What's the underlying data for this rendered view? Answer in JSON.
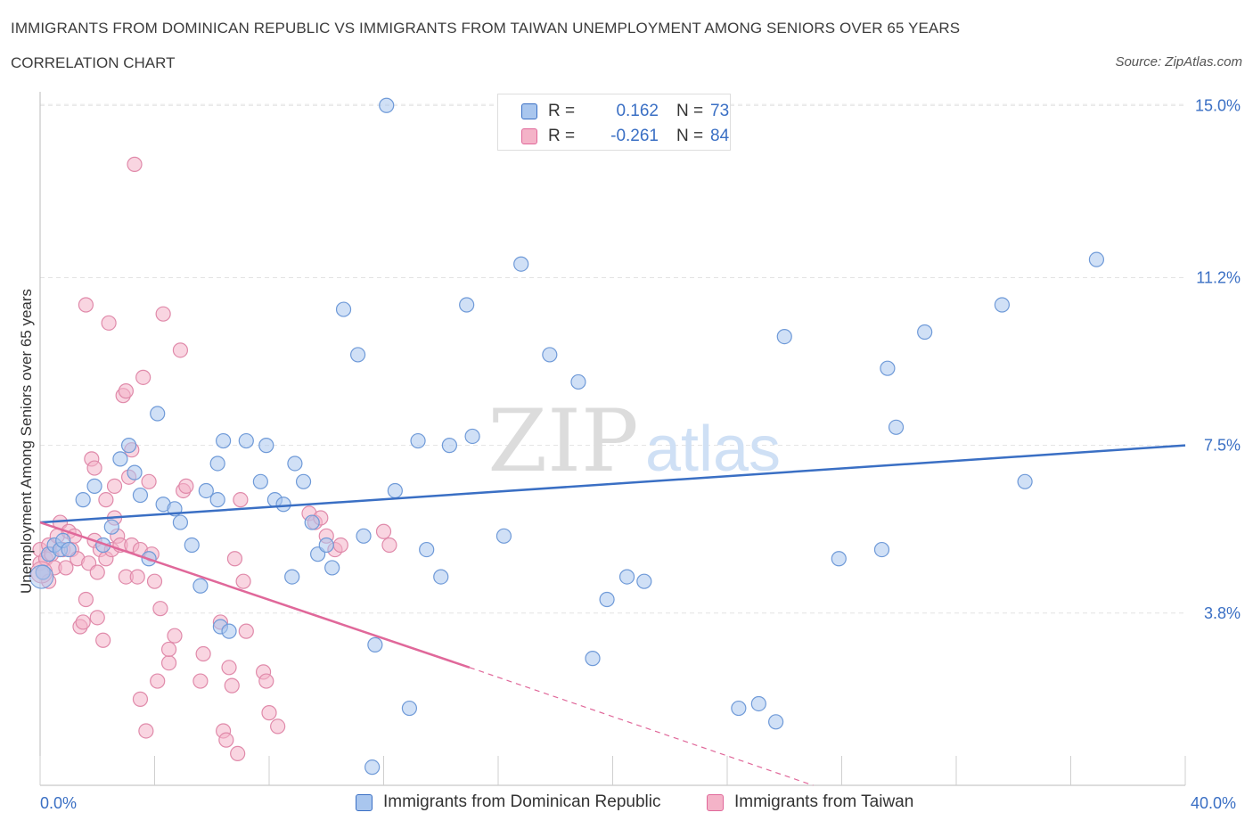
{
  "header": {
    "title": "IMMIGRANTS FROM DOMINICAN REPUBLIC VS IMMIGRANTS FROM TAIWAN UNEMPLOYMENT AMONG SENIORS OVER 65 YEARS",
    "subtitle": "CORRELATION CHART",
    "source": "Source: ZipAtlas.com"
  },
  "watermark": {
    "zip": "ZIP",
    "atlas": "atlas"
  },
  "legend": {
    "r_label": "R =",
    "n_label": "N =",
    "series": [
      {
        "name": "Immigrants from Dominican Republic",
        "r": "0.162",
        "n": "73",
        "color": "#a9c6ee",
        "line": "#3a6fc4"
      },
      {
        "name": "Immigrants from Taiwan",
        "r": "-0.261",
        "n": "84",
        "color": "#f4b3c8",
        "line": "#e0689a"
      }
    ]
  },
  "chart_data": {
    "type": "scatter",
    "title": "IMMIGRANTS FROM DOMINICAN REPUBLIC VS IMMIGRANTS FROM TAIWAN UNEMPLOYMENT AMONG SENIORS OVER 65 YEARS",
    "xlabel": "",
    "ylabel": "Unemployment Among Seniors over 65 years",
    "xlim": [
      0,
      40
    ],
    "ylim": [
      0,
      15.3
    ],
    "x_tick_labels": [
      "0.0%",
      "40.0%"
    ],
    "y_ticks": [
      3.8,
      7.5,
      11.2,
      15.0
    ],
    "y_tick_labels": [
      "3.8%",
      "7.5%",
      "11.2%",
      "15.0%"
    ],
    "grid": true,
    "series": [
      {
        "name": "Immigrants from Dominican Republic",
        "trend": {
          "x": [
            0,
            40
          ],
          "y": [
            5.8,
            7.5
          ]
        },
        "points": [
          [
            0.1,
            4.7
          ],
          [
            0.3,
            5.1
          ],
          [
            0.5,
            5.3
          ],
          [
            0.7,
            5.2
          ],
          [
            0.8,
            5.4
          ],
          [
            1.0,
            5.2
          ],
          [
            1.5,
            6.3
          ],
          [
            1.9,
            6.6
          ],
          [
            2.2,
            5.3
          ],
          [
            2.5,
            5.7
          ],
          [
            2.8,
            7.2
          ],
          [
            3.1,
            7.5
          ],
          [
            3.3,
            6.9
          ],
          [
            3.5,
            6.4
          ],
          [
            3.8,
            5.0
          ],
          [
            4.1,
            8.2
          ],
          [
            4.3,
            6.2
          ],
          [
            4.7,
            6.1
          ],
          [
            4.9,
            5.8
          ],
          [
            5.3,
            5.3
          ],
          [
            5.6,
            4.4
          ],
          [
            5.8,
            6.5
          ],
          [
            6.2,
            7.1
          ],
          [
            6.3,
            3.5
          ],
          [
            6.6,
            3.4
          ],
          [
            6.2,
            6.3
          ],
          [
            6.4,
            7.6
          ],
          [
            7.2,
            7.6
          ],
          [
            7.7,
            6.7
          ],
          [
            7.9,
            7.5
          ],
          [
            8.2,
            6.3
          ],
          [
            8.5,
            6.2
          ],
          [
            8.9,
            7.1
          ],
          [
            8.8,
            4.6
          ],
          [
            9.2,
            6.7
          ],
          [
            9.5,
            5.8
          ],
          [
            9.7,
            5.1
          ],
          [
            10.0,
            5.3
          ],
          [
            10.2,
            4.8
          ],
          [
            10.6,
            10.5
          ],
          [
            11.1,
            9.5
          ],
          [
            11.3,
            5.5
          ],
          [
            11.6,
            0.4
          ],
          [
            11.7,
            3.1
          ],
          [
            12.1,
            15.0
          ],
          [
            12.4,
            6.5
          ],
          [
            12.9,
            1.7
          ],
          [
            13.2,
            7.6
          ],
          [
            13.5,
            5.2
          ],
          [
            14.0,
            4.6
          ],
          [
            14.3,
            7.5
          ],
          [
            14.9,
            10.6
          ],
          [
            15.1,
            7.7
          ],
          [
            16.2,
            5.5
          ],
          [
            16.8,
            11.5
          ],
          [
            17.8,
            9.5
          ],
          [
            18.8,
            8.9
          ],
          [
            19.3,
            2.8
          ],
          [
            19.8,
            4.1
          ],
          [
            20.5,
            4.6
          ],
          [
            21.1,
            4.5
          ],
          [
            24.4,
            1.7
          ],
          [
            25.1,
            1.8
          ],
          [
            25.7,
            1.4
          ],
          [
            26.0,
            9.9
          ],
          [
            27.9,
            5.0
          ],
          [
            29.4,
            5.2
          ],
          [
            29.6,
            9.2
          ],
          [
            29.9,
            7.9
          ],
          [
            30.9,
            10.0
          ],
          [
            33.6,
            10.6
          ],
          [
            34.4,
            6.7
          ],
          [
            36.9,
            11.6
          ]
        ]
      },
      {
        "name": "Immigrants from Taiwan",
        "trend": {
          "x": [
            0,
            15
          ],
          "y": [
            5.8,
            2.6
          ]
        },
        "trend_extension": {
          "x": [
            15,
            27
          ],
          "y": [
            2.6,
            0.0
          ]
        },
        "points": [
          [
            0.0,
            5.2
          ],
          [
            0.0,
            4.9
          ],
          [
            0.1,
            4.7
          ],
          [
            0.2,
            5.0
          ],
          [
            0.3,
            5.3
          ],
          [
            0.4,
            5.1
          ],
          [
            0.5,
            4.8
          ],
          [
            0.6,
            5.5
          ],
          [
            0.7,
            5.8
          ],
          [
            0.8,
            5.2
          ],
          [
            0.9,
            4.8
          ],
          [
            1.0,
            5.6
          ],
          [
            1.1,
            5.2
          ],
          [
            1.2,
            5.5
          ],
          [
            1.3,
            5.0
          ],
          [
            1.4,
            3.5
          ],
          [
            1.5,
            3.6
          ],
          [
            1.6,
            10.6
          ],
          [
            1.6,
            4.1
          ],
          [
            1.7,
            4.9
          ],
          [
            1.8,
            7.2
          ],
          [
            1.9,
            7.0
          ],
          [
            1.9,
            5.4
          ],
          [
            2.0,
            4.7
          ],
          [
            2.0,
            3.7
          ],
          [
            2.1,
            5.2
          ],
          [
            2.2,
            3.2
          ],
          [
            2.3,
            6.3
          ],
          [
            2.3,
            5.0
          ],
          [
            2.4,
            10.2
          ],
          [
            2.5,
            5.2
          ],
          [
            2.6,
            6.6
          ],
          [
            2.6,
            5.9
          ],
          [
            2.7,
            5.5
          ],
          [
            2.8,
            5.3
          ],
          [
            2.9,
            8.6
          ],
          [
            3.0,
            4.6
          ],
          [
            3.0,
            8.7
          ],
          [
            3.1,
            6.8
          ],
          [
            3.2,
            7.4
          ],
          [
            3.2,
            5.3
          ],
          [
            3.3,
            13.7
          ],
          [
            3.4,
            4.6
          ],
          [
            3.5,
            5.2
          ],
          [
            3.5,
            1.9
          ],
          [
            3.6,
            9.0
          ],
          [
            3.7,
            1.2
          ],
          [
            3.8,
            6.7
          ],
          [
            3.9,
            5.1
          ],
          [
            4.0,
            4.5
          ],
          [
            4.1,
            2.3
          ],
          [
            4.2,
            3.9
          ],
          [
            4.3,
            10.4
          ],
          [
            4.5,
            2.7
          ],
          [
            4.5,
            3.0
          ],
          [
            4.7,
            3.3
          ],
          [
            4.9,
            9.6
          ],
          [
            5.0,
            6.5
          ],
          [
            5.1,
            6.6
          ],
          [
            5.6,
            2.3
          ],
          [
            5.7,
            2.9
          ],
          [
            6.3,
            3.6
          ],
          [
            6.4,
            1.2
          ],
          [
            6.5,
            1.0
          ],
          [
            6.6,
            2.6
          ],
          [
            6.7,
            2.2
          ],
          [
            6.8,
            5.0
          ],
          [
            6.9,
            0.7
          ],
          [
            7.0,
            6.3
          ],
          [
            7.1,
            4.5
          ],
          [
            7.2,
            3.4
          ],
          [
            7.8,
            2.5
          ],
          [
            7.9,
            2.3
          ],
          [
            8.0,
            1.6
          ],
          [
            8.3,
            1.3
          ],
          [
            9.4,
            6.0
          ],
          [
            9.6,
            5.8
          ],
          [
            9.8,
            5.9
          ],
          [
            10.0,
            5.5
          ],
          [
            10.3,
            5.2
          ],
          [
            10.5,
            5.3
          ],
          [
            12.0,
            5.6
          ],
          [
            12.2,
            5.3
          ],
          [
            0.3,
            4.5
          ]
        ]
      }
    ]
  },
  "axes": {
    "x_min_label": "0.0%",
    "x_max_label": "40.0%",
    "y_title": "Unemployment Among Seniors over 65 years"
  }
}
